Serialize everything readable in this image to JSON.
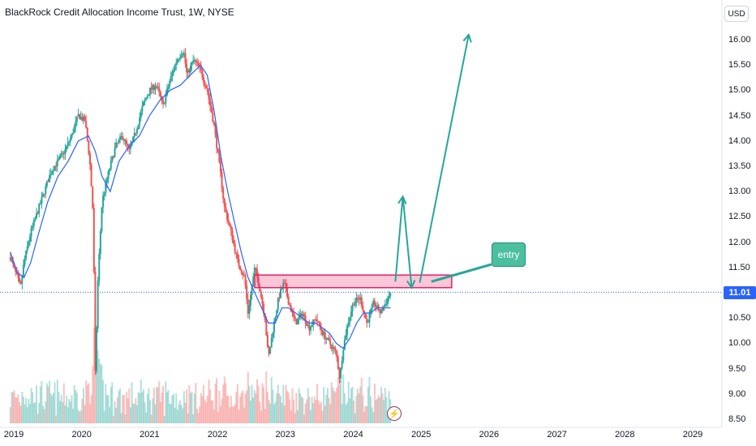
{
  "header": {
    "title": "BlackRock Credit Allocation Income Trust, 1W, NYSE",
    "currency": "USD"
  },
  "current_price": {
    "label": "11.01",
    "value": 11.01,
    "color": "#2962ff"
  },
  "annotation": {
    "entry_label": "entry",
    "color": "#26a69a",
    "zone_color": "#e91e63"
  },
  "icons": {
    "flash": "lightning-icon"
  },
  "chart_data": {
    "type": "candlestick",
    "title": "BlackRock Credit Allocation Income Trust, 1W, NYSE",
    "ylim": [
      8.5,
      16.5
    ],
    "y_ticks": [
      "16.00",
      "15.50",
      "15.00",
      "14.50",
      "14.00",
      "13.50",
      "13.00",
      "12.50",
      "12.00",
      "11.50",
      "11.01",
      "10.50",
      "10.00",
      "9.50",
      "9.00",
      "8.50"
    ],
    "x_ticks": [
      "2019",
      "2020",
      "2021",
      "2022",
      "2023",
      "2024",
      "2025",
      "2026",
      "2027",
      "2028",
      "2029"
    ],
    "xlim": [
      2018.92,
      2029.75
    ],
    "grid": false,
    "close_series": [
      [
        2018.95,
        11.7
      ],
      [
        2019.05,
        11.3
      ],
      [
        2019.1,
        11.1
      ],
      [
        2019.15,
        11.6
      ],
      [
        2019.25,
        12.2
      ],
      [
        2019.35,
        12.6
      ],
      [
        2019.45,
        13.0
      ],
      [
        2019.55,
        13.4
      ],
      [
        2019.65,
        13.6
      ],
      [
        2019.75,
        13.8
      ],
      [
        2019.85,
        14.1
      ],
      [
        2019.95,
        14.5
      ],
      [
        2020.05,
        14.4
      ],
      [
        2020.12,
        13.6
      ],
      [
        2020.17,
        12.5
      ],
      [
        2020.2,
        9.4
      ],
      [
        2020.24,
        11.3
      ],
      [
        2020.3,
        12.8
      ],
      [
        2020.4,
        13.4
      ],
      [
        2020.5,
        13.9
      ],
      [
        2020.6,
        14.1
      ],
      [
        2020.7,
        13.8
      ],
      [
        2020.8,
        14.2
      ],
      [
        2020.9,
        14.7
      ],
      [
        2021.0,
        15.0
      ],
      [
        2021.1,
        15.1
      ],
      [
        2021.2,
        14.7
      ],
      [
        2021.3,
        15.2
      ],
      [
        2021.4,
        15.6
      ],
      [
        2021.5,
        15.8
      ],
      [
        2021.55,
        15.3
      ],
      [
        2021.65,
        15.6
      ],
      [
        2021.75,
        15.4
      ],
      [
        2021.85,
        15.0
      ],
      [
        2021.95,
        14.3
      ],
      [
        2022.05,
        13.3
      ],
      [
        2022.1,
        12.7
      ],
      [
        2022.2,
        12.2
      ],
      [
        2022.3,
        11.6
      ],
      [
        2022.4,
        11.3
      ],
      [
        2022.45,
        10.6
      ],
      [
        2022.55,
        11.5
      ],
      [
        2022.62,
        11.1
      ],
      [
        2022.7,
        10.5
      ],
      [
        2022.75,
        9.7
      ],
      [
        2022.82,
        10.3
      ],
      [
        2022.9,
        10.9
      ],
      [
        2022.98,
        11.2
      ],
      [
        2023.05,
        10.8
      ],
      [
        2023.15,
        10.4
      ],
      [
        2023.25,
        10.6
      ],
      [
        2023.35,
        10.3
      ],
      [
        2023.45,
        10.5
      ],
      [
        2023.55,
        10.2
      ],
      [
        2023.65,
        10.0
      ],
      [
        2023.75,
        9.8
      ],
      [
        2023.8,
        9.3
      ],
      [
        2023.85,
        9.9
      ],
      [
        2023.92,
        10.4
      ],
      [
        2024.0,
        10.8
      ],
      [
        2024.1,
        10.9
      ],
      [
        2024.2,
        10.4
      ],
      [
        2024.3,
        10.8
      ],
      [
        2024.4,
        10.6
      ],
      [
        2024.48,
        10.8
      ],
      [
        2024.55,
        11.01
      ]
    ],
    "moving_average": [
      [
        2018.95,
        11.8
      ],
      [
        2019.05,
        11.4
      ],
      [
        2019.15,
        11.3
      ],
      [
        2019.25,
        11.6
      ],
      [
        2019.35,
        12.1
      ],
      [
        2019.5,
        12.8
      ],
      [
        2019.65,
        13.3
      ],
      [
        2019.8,
        13.6
      ],
      [
        2019.95,
        14.0
      ],
      [
        2020.1,
        14.1
      ],
      [
        2020.2,
        13.8
      ],
      [
        2020.3,
        13.3
      ],
      [
        2020.42,
        13.0
      ],
      [
        2020.55,
        13.6
      ],
      [
        2020.7,
        13.9
      ],
      [
        2020.85,
        14.1
      ],
      [
        2021.0,
        14.5
      ],
      [
        2021.15,
        14.8
      ],
      [
        2021.3,
        15.0
      ],
      [
        2021.45,
        15.1
      ],
      [
        2021.6,
        15.3
      ],
      [
        2021.75,
        15.5
      ],
      [
        2021.85,
        15.3
      ],
      [
        2021.95,
        14.6
      ],
      [
        2022.05,
        13.7
      ],
      [
        2022.15,
        13.0
      ],
      [
        2022.25,
        12.4
      ],
      [
        2022.35,
        11.8
      ],
      [
        2022.45,
        11.3
      ],
      [
        2022.55,
        11.0
      ],
      [
        2022.65,
        10.7
      ],
      [
        2022.75,
        10.4
      ],
      [
        2022.85,
        10.4
      ],
      [
        2022.95,
        10.7
      ],
      [
        2023.05,
        10.7
      ],
      [
        2023.15,
        10.6
      ],
      [
        2023.25,
        10.5
      ],
      [
        2023.35,
        10.4
      ],
      [
        2023.45,
        10.4
      ],
      [
        2023.55,
        10.3
      ],
      [
        2023.65,
        10.2
      ],
      [
        2023.75,
        10.0
      ],
      [
        2023.85,
        9.9
      ],
      [
        2023.95,
        10.1
      ],
      [
        2024.05,
        10.4
      ],
      [
        2024.15,
        10.6
      ],
      [
        2024.25,
        10.6
      ],
      [
        2024.35,
        10.7
      ],
      [
        2024.45,
        10.7
      ],
      [
        2024.55,
        10.7
      ]
    ],
    "annotations": {
      "entry_zone": {
        "x": [
          2022.55,
          2025.45
        ],
        "y": [
          11.1,
          11.35
        ]
      },
      "arrow_up_1": [
        [
          2024.62,
          11.22
        ],
        [
          2024.73,
          12.9
        ]
      ],
      "arrow_down_1": [
        [
          2024.73,
          12.9
        ],
        [
          2024.86,
          11.1
        ]
      ],
      "arrow_up_2": [
        [
          2024.98,
          11.2
        ],
        [
          2025.7,
          16.1
        ]
      ],
      "entry_pointer": [
        [
          2025.15,
          11.22
        ],
        [
          2025.9,
          11.55
        ]
      ]
    }
  }
}
